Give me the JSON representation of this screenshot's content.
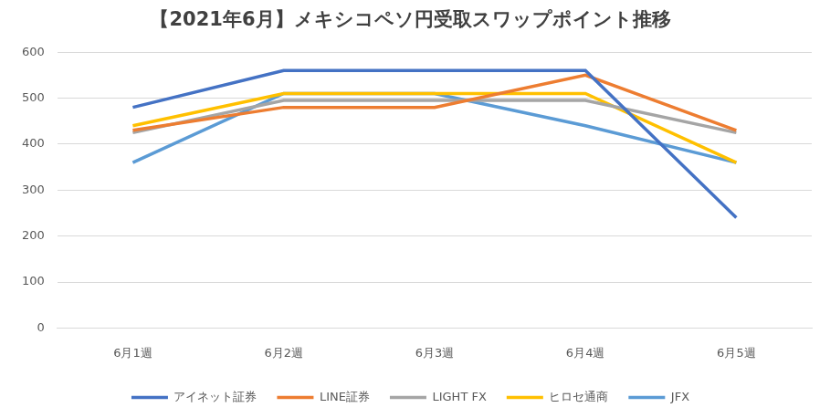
{
  "chart_data": {
    "type": "line",
    "title": "【2021年6月】メキシコペソ円受取スワップポイント推移",
    "categories": [
      "6月1週",
      "6月2週",
      "6月3週",
      "6月4週",
      "6月5週"
    ],
    "series": [
      {
        "name": "アイネット証券",
        "color": "#4472c4",
        "values": [
          480,
          560,
          560,
          560,
          240
        ]
      },
      {
        "name": "LINE証券",
        "color": "#ed7d31",
        "values": [
          430,
          480,
          480,
          550,
          430
        ]
      },
      {
        "name": "LIGHT FX",
        "color": "#a5a5a5",
        "values": [
          425,
          495,
          495,
          495,
          425
        ]
      },
      {
        "name": "ヒロセ通商",
        "color": "#ffc000",
        "values": [
          440,
          510,
          510,
          510,
          360
        ]
      },
      {
        "name": "JFX",
        "color": "#5b9bd5",
        "values": [
          360,
          510,
          510,
          440,
          360
        ]
      }
    ],
    "ylim": [
      0,
      600
    ],
    "yticks": [
      0,
      100,
      200,
      300,
      400,
      500,
      600
    ],
    "grid": true,
    "legend": "bottom"
  }
}
